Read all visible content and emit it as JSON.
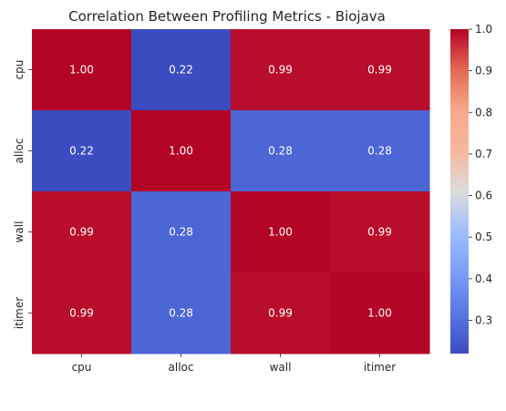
{
  "chart_data": {
    "type": "heatmap",
    "title": "Correlation Between Profiling Metrics - Biojava",
    "x_categories": [
      "cpu",
      "alloc",
      "wall",
      "itimer"
    ],
    "y_categories": [
      "cpu",
      "alloc",
      "wall",
      "itimer"
    ],
    "values": [
      [
        1.0,
        0.22,
        0.99,
        0.99
      ],
      [
        0.22,
        1.0,
        0.28,
        0.28
      ],
      [
        0.99,
        0.28,
        1.0,
        0.99
      ],
      [
        0.99,
        0.28,
        0.99,
        1.0
      ]
    ],
    "cell_labels": [
      [
        "1.00",
        "0.22",
        "0.99",
        "0.99"
      ],
      [
        "0.22",
        "1.00",
        "0.28",
        "0.28"
      ],
      [
        "0.99",
        "0.28",
        "1.00",
        "0.99"
      ],
      [
        "0.99",
        "0.28",
        "0.99",
        "1.00"
      ]
    ],
    "colormap": "coolwarm",
    "color_range": [
      0.22,
      1.0
    ],
    "colorbar_ticks": [
      0.3,
      0.4,
      0.5,
      0.6,
      0.7,
      0.8,
      0.9,
      1.0
    ],
    "colorbar_tick_labels": [
      "0.3",
      "0.4",
      "0.5",
      "0.6",
      "0.7",
      "0.8",
      "0.9",
      "1.0"
    ],
    "colorbar_position": "right",
    "grid": false,
    "xlabel": "",
    "ylabel": ""
  }
}
